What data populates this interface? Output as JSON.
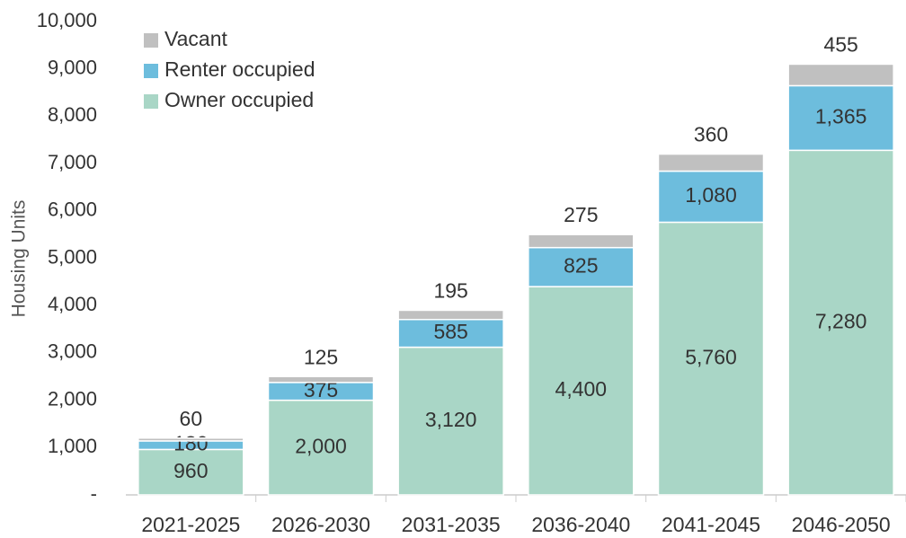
{
  "chart_data": {
    "type": "stacked_bar",
    "y_label": "Housing Units",
    "categories": [
      "2021-2025",
      "2026-2030",
      "2031-2035",
      "2036-2040",
      "2041-2045",
      "2046-2050"
    ],
    "series": [
      {
        "name": "Owner occupied",
        "color": "#a9d6c6",
        "values": [
          960,
          2000,
          3120,
          4400,
          5760,
          7280
        ],
        "value_labels": [
          "960",
          "2,000",
          "3,120",
          "4,400",
          "5,760",
          "7,280"
        ]
      },
      {
        "name": "Renter occupied",
        "color": "#6dbddd",
        "values": [
          180,
          375,
          585,
          825,
          1080,
          1365
        ],
        "value_labels": [
          "180",
          "375",
          "585",
          "825",
          "1,080",
          "1,365"
        ]
      },
      {
        "name": "Vacant",
        "color": "#c0c0c0",
        "values": [
          60,
          125,
          195,
          275,
          360,
          455
        ],
        "value_labels": [
          "60",
          "125",
          "195",
          "275",
          "360",
          "455"
        ]
      }
    ],
    "ylim": [
      0,
      10000
    ],
    "yticks": [
      {
        "value": 0,
        "label": "-"
      },
      {
        "value": 1000,
        "label": "1,000"
      },
      {
        "value": 2000,
        "label": "2,000"
      },
      {
        "value": 3000,
        "label": "3,000"
      },
      {
        "value": 4000,
        "label": "4,000"
      },
      {
        "value": 5000,
        "label": "5,000"
      },
      {
        "value": 6000,
        "label": "6,000"
      },
      {
        "value": 7000,
        "label": "7,000"
      },
      {
        "value": 8000,
        "label": "8,000"
      },
      {
        "value": 9000,
        "label": "9,000"
      },
      {
        "value": 10000,
        "label": "10,000"
      }
    ],
    "grid": false,
    "legend": "top-left"
  }
}
